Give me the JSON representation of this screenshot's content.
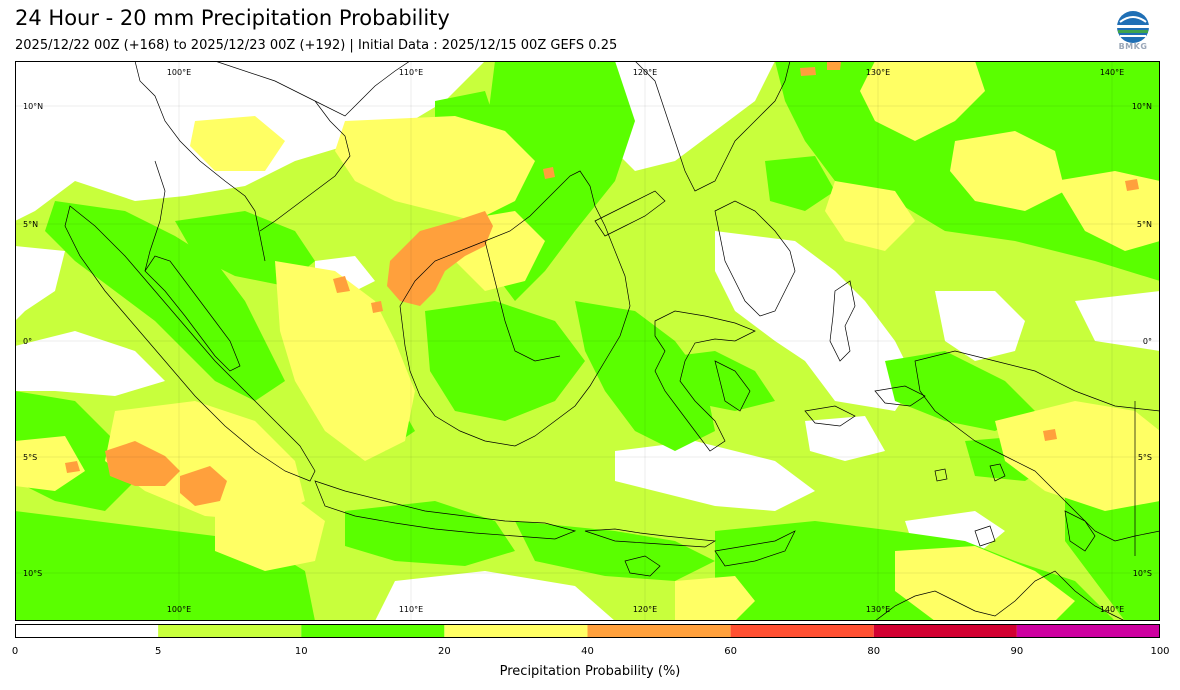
{
  "header": {
    "title": "24 Hour - 20 mm Precipitation Probability",
    "subtitle": "2025/12/22 00Z (+168) to 2025/12/23 00Z (+192) | Initial Data : 2025/12/15 00Z GEFS 0.25"
  },
  "logo": {
    "name": "bmkg-logo-icon",
    "text": "BMKG"
  },
  "map": {
    "lon_labels": [
      "100°E",
      "110°E",
      "120°E",
      "130°E",
      "140°E"
    ],
    "lat_labels": [
      "10°N",
      "5°N",
      "0°",
      "5°S",
      "10°S"
    ]
  },
  "colorbar": {
    "label": "Precipitation Probability (%)",
    "ticks": [
      "0",
      "5",
      "10",
      "20",
      "40",
      "60",
      "80",
      "90",
      "100"
    ],
    "colors": [
      "#ffffff",
      "#c8ff3c",
      "#5aff00",
      "#ffff64",
      "#ffa03c",
      "#ff5032",
      "#d20032",
      "#cd00a0"
    ]
  },
  "colors": {
    "light_green": "#c8ff3c",
    "green": "#5aff00",
    "yellow": "#ffff64",
    "orange": "#ffa03c",
    "red": "#ff5032",
    "coast": "#000000"
  }
}
